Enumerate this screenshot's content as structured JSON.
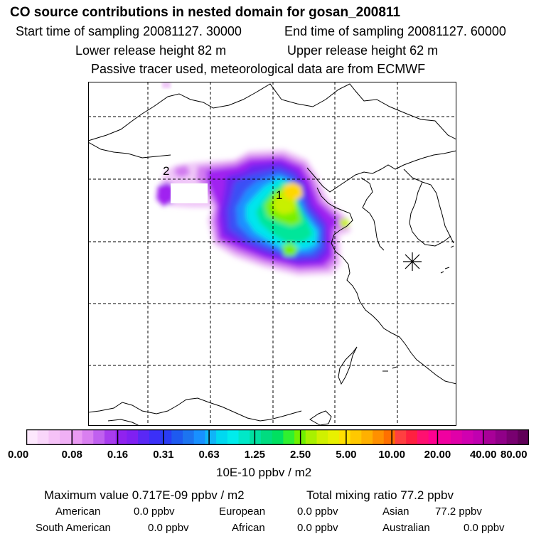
{
  "header": {
    "title": "CO  source contributions in nested domain for gosan_200811",
    "start_time": "Start time of sampling 20081127. 30000",
    "end_time": "End time of sampling 20081127. 60000",
    "lower_release": "Lower release height   82 m",
    "upper_release": "Upper release height   62 m",
    "tracer_note": "Passive tracer used, meteorological data are from ECMWF"
  },
  "map": {
    "source_labels": [
      "1",
      "2"
    ],
    "receptor_marker": "asterisk-icon",
    "plume_colors": [
      "#f0c8f8",
      "#d27cf0",
      "#a020f0",
      "#6a28f0",
      "#3a50f5",
      "#1e90ff",
      "#00e5ee",
      "#00e69a",
      "#78f000",
      "#c8f000",
      "#ffd700"
    ]
  },
  "colorbar": {
    "colors": [
      "#fde8fd",
      "#f9d6fa",
      "#f5c2f7",
      "#f0b0f5",
      "#ea9af3",
      "#d97ff0",
      "#c060ef",
      "#a83cee",
      "#9022ef",
      "#8020f2",
      "#5a28f5",
      "#3b30f8",
      "#2a3cf5",
      "#1e5af0",
      "#1c74f0",
      "#1890ff",
      "#10b4f7",
      "#00d8f0",
      "#00ecec",
      "#00e8c8",
      "#00e0a0",
      "#00dc80",
      "#00e060",
      "#30f030",
      "#70f000",
      "#a8f000",
      "#d0f000",
      "#e8f000",
      "#ffe000",
      "#ffc800",
      "#ffb000",
      "#ff9000",
      "#ff7000",
      "#ff4040",
      "#ff2040",
      "#ff1070",
      "#ff0090",
      "#f000a0",
      "#e000a8",
      "#d000b0",
      "#c000b0",
      "#a80098",
      "#900088",
      "#780070",
      "#600058"
    ],
    "tick_labels": [
      "0.00",
      "0.08",
      "0.16",
      "0.31",
      "0.63",
      "1.25",
      "2.50",
      "5.00",
      "10.00",
      "20.00",
      "40.00",
      "80.00"
    ],
    "unit": "10E-10 ppbv / m2"
  },
  "summary": {
    "max_value": "Maximum value  0.717E-09 ppbv / m2",
    "total_mixing": "Total mixing ratio       77.2 ppbv",
    "regions": [
      {
        "name": "American",
        "value": "0.0 ppbv"
      },
      {
        "name": "European",
        "value": "0.0 ppbv"
      },
      {
        "name": "Asian",
        "value": "77.2 ppbv"
      },
      {
        "name": "South American",
        "value": "0.0 ppbv"
      },
      {
        "name": "African",
        "value": "0.0 ppbv"
      },
      {
        "name": "Australian",
        "value": "0.0 ppbv"
      }
    ]
  }
}
